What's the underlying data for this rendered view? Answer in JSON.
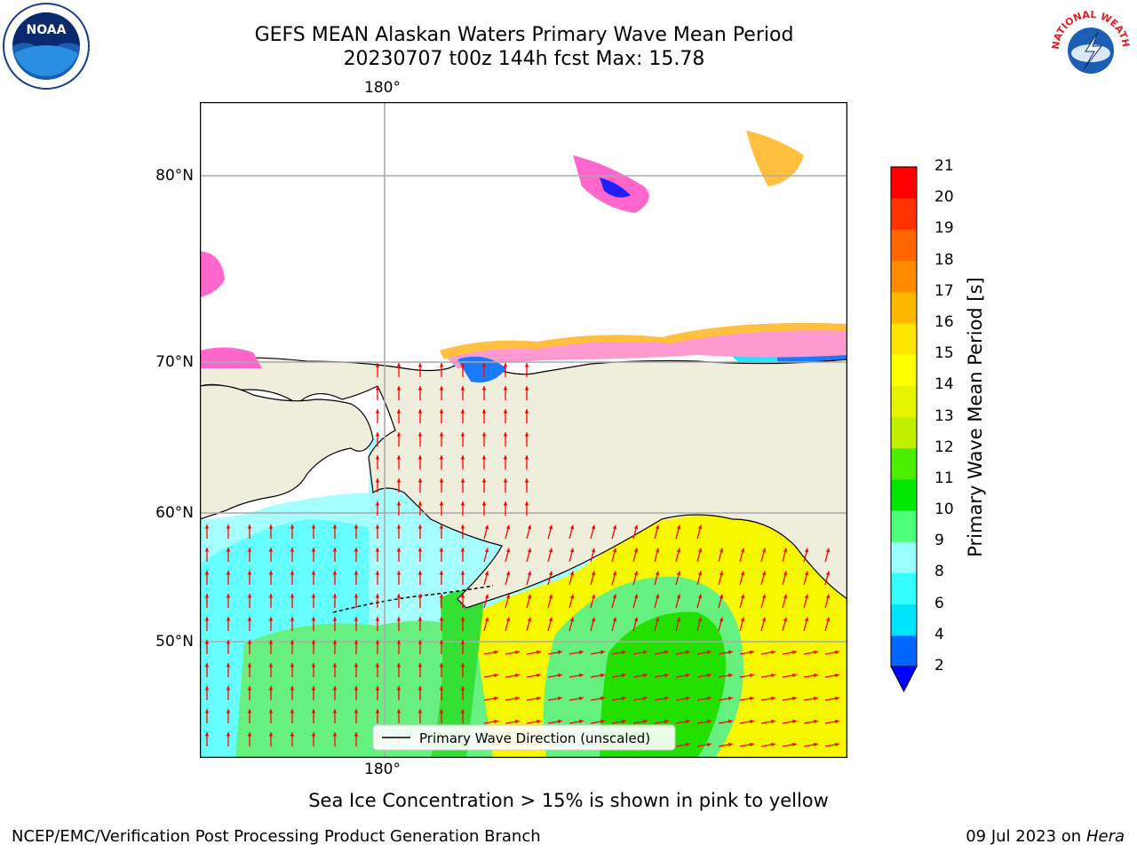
{
  "title": {
    "line1": "GEFS MEAN Alaskan Waters Primary Wave Mean Period",
    "line2": "20230707 t00z 144h fcst   Max: 15.78"
  },
  "map": {
    "longitude_label_top": "180°",
    "longitude_label_bottom": "180°",
    "latitude_labels": [
      "80°N",
      "70°N",
      "60°N",
      "50°N"
    ],
    "land_color": "#efeddc",
    "ocean_color": "#ffffff",
    "legend_label": "Primary Wave Direction (unscaled)",
    "arrow_color": "#ff0000"
  },
  "colorbar": {
    "label": "Primary Wave Mean Period [s]",
    "ticks": [
      "2",
      "4",
      "6",
      "8",
      "9",
      "10",
      "11",
      "12",
      "13",
      "14",
      "15",
      "16",
      "17",
      "18",
      "19",
      "20",
      "21"
    ],
    "colors": [
      "#0000ff",
      "#0066ff",
      "#00e5ff",
      "#33ffff",
      "#99ffff",
      "#4dff7a",
      "#00e600",
      "#4ded00",
      "#c0f000",
      "#e5f500",
      "#ffff00",
      "#ffe600",
      "#ffb800",
      "#ff8c00",
      "#ff6600",
      "#ff3300",
      "#ff0000"
    ]
  },
  "notes": {
    "sea_ice": "Sea Ice Concentration > 15% is shown in pink to yellow"
  },
  "footer": {
    "left": "NCEP/EMC/Verification Post Processing Product Generation Branch",
    "date": "09 Jul 2023 on ",
    "machine": "Hera"
  },
  "logos": {
    "noaa": "NOAA",
    "nws": "NATIONAL WEATHER SERVICE"
  }
}
